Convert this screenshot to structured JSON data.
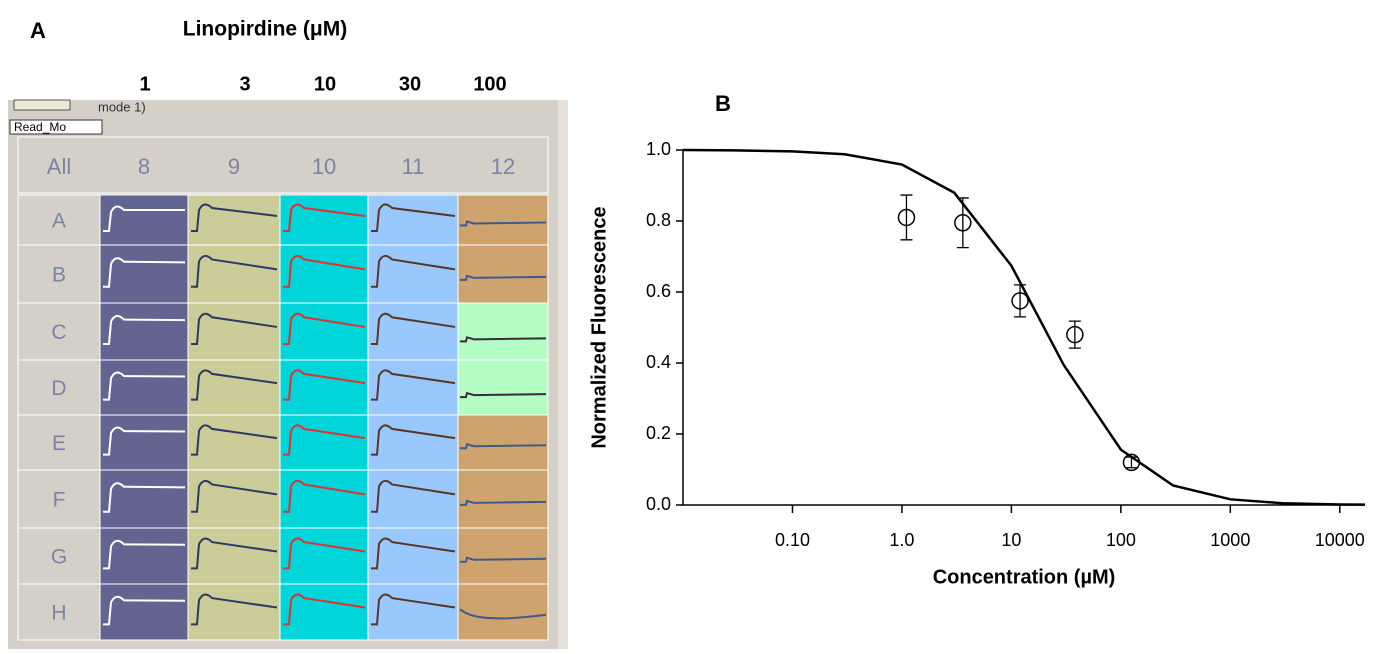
{
  "panel_a": {
    "label": "A",
    "title": "Linopirdine (μM)",
    "concentrations": [
      1,
      3,
      10,
      30,
      100
    ],
    "toolbar_text": "mode 1)",
    "tooltip": "Read_Mo",
    "header": "All",
    "columns": [
      "8",
      "9",
      "10",
      "11",
      "12"
    ],
    "rows": [
      "A",
      "B",
      "C",
      "D",
      "E",
      "F",
      "G",
      "H"
    ]
  },
  "chart_data": {
    "type": "scatter",
    "panel_label": "B",
    "x_label": "Concentration (µM)",
    "y_label": "Normalized Fluorescence",
    "xscale": "log",
    "xlim": [
      0.01,
      17000
    ],
    "xticks": [
      {
        "value": 0.1,
        "label": "0.10"
      },
      {
        "value": 1,
        "label": "1.0"
      },
      10,
      100,
      1000,
      10000
    ],
    "ylim": [
      0,
      1
    ],
    "yticks": [
      {
        "value": 0,
        "label": "0.0"
      },
      0.2,
      0.4,
      0.6,
      0.8,
      {
        "value": 1,
        "label": "1.0"
      }
    ],
    "series": [
      {
        "color": "#000000",
        "marker": "circle",
        "x": [
          1.1,
          3.6,
          12,
          38,
          125
        ],
        "values": [
          0.81,
          0.795,
          0.575,
          0.48,
          0.12
        ],
        "errors": [
          0.063,
          0.07,
          0.045,
          0.038,
          0.015
        ]
      }
    ],
    "fit": {
      "color": "#000000",
      "x": [
        0.01,
        0.03,
        0.1,
        0.3,
        1,
        3,
        10,
        30,
        100,
        300,
        1000,
        3000,
        10000,
        17000
      ],
      "values": [
        1.0,
        0.999,
        0.996,
        0.988,
        0.959,
        0.88,
        0.674,
        0.395,
        0.156,
        0.055,
        0.016,
        0.005,
        0.0015,
        0.001
      ]
    }
  }
}
